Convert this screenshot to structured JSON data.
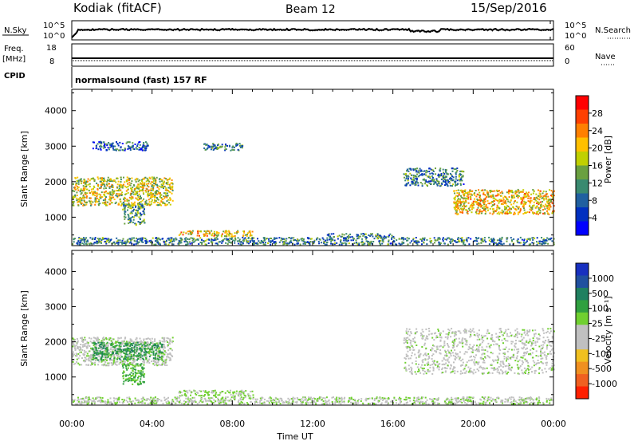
{
  "header": {
    "station": "Kodiak (fitACF)",
    "beam": "Beam 12",
    "date": "15/Sep/2016"
  },
  "top_panels": {
    "nsky_label": "N.Sky",
    "nsearch_label": "N.Search",
    "noise_ticks": [
      "10^5",
      "10^0"
    ],
    "freq_label_1": "Freq.",
    "freq_label_2": "[MHz]",
    "freq_ticks": [
      "18",
      "8"
    ],
    "nave_label": "Nave",
    "nave_ticks": [
      "60",
      "0"
    ],
    "cpid_label": "CPID",
    "cpid_text": "normalsound (fast) 157 RF"
  },
  "axes": {
    "ylabel": "Slant Range [km]",
    "yticks": [
      "4000",
      "3000",
      "2000",
      "1000"
    ],
    "xticks": [
      "00:00",
      "04:00",
      "08:00",
      "12:00",
      "16:00",
      "20:00",
      "00:00"
    ],
    "xlabel": "Time UT"
  },
  "power_scale": {
    "label": "Power [dB]",
    "ticks": [
      "28",
      "24",
      "20",
      "16",
      "12",
      "8",
      "4"
    ],
    "colors": [
      "#ff0000",
      "#ff4000",
      "#ff8000",
      "#ffc000",
      "#c0d000",
      "#6aa040",
      "#3a8a70",
      "#2060a0",
      "#0030c0",
      "#0000ff"
    ]
  },
  "velocity_scale": {
    "label": "Velocity [m s⁻¹]",
    "ticks": [
      "1000",
      "500",
      "100",
      "25",
      "-25",
      "-100",
      "-500",
      "-1000"
    ],
    "colors": [
      "#1830c0",
      "#2050a0",
      "#208060",
      "#30a040",
      "#70d030",
      "#c0c0c0",
      "#c0c0c0",
      "#f0c020",
      "#f09020",
      "#f06020",
      "#ff2000"
    ]
  },
  "chart_data": [
    {
      "type": "heatmap",
      "title": "Power [dB]",
      "xlabel": "Time UT",
      "ylabel": "Slant Range [km]",
      "xlim": [
        0,
        24
      ],
      "ylim": [
        200,
        4600
      ],
      "color_range": [
        0,
        32
      ],
      "regions": [
        {
          "t0": 0.0,
          "t1": 5.0,
          "r0": 1350,
          "r1": 2150,
          "value": 18
        },
        {
          "t0": 2.5,
          "t1": 3.6,
          "r0": 800,
          "r1": 1400,
          "value": 12
        },
        {
          "t0": 5.3,
          "t1": 9.0,
          "r0": 480,
          "r1": 640,
          "value": 20
        },
        {
          "t0": 12.7,
          "t1": 16.0,
          "r0": 450,
          "r1": 560,
          "value": 10
        },
        {
          "t0": 16.5,
          "t1": 19.5,
          "r0": 1900,
          "r1": 2400,
          "value": 10
        },
        {
          "t0": 19.0,
          "t1": 24.0,
          "r0": 1100,
          "r1": 1800,
          "value": 20
        },
        {
          "t0": 1.0,
          "t1": 3.8,
          "r0": 2900,
          "r1": 3150,
          "value": 8
        },
        {
          "t0": 6.5,
          "t1": 8.5,
          "r0": 2900,
          "r1": 3100,
          "value": 10
        },
        {
          "t0": 0.0,
          "t1": 24.0,
          "r0": 250,
          "r1": 450,
          "value": 10
        }
      ]
    },
    {
      "type": "heatmap",
      "title": "Velocity [m s-1]",
      "xlabel": "Time UT",
      "ylabel": "Slant Range [km]",
      "xlim": [
        0,
        24
      ],
      "ylim": [
        200,
        4600
      ],
      "color_range": [
        -1000,
        1000
      ],
      "regions": [
        {
          "t0": 0.0,
          "t1": 5.0,
          "r0": 1350,
          "r1": 2150,
          "value": 0
        },
        {
          "t0": 1.0,
          "t1": 4.5,
          "r0": 1500,
          "r1": 2000,
          "value": 400
        },
        {
          "t0": 2.5,
          "t1": 3.6,
          "r0": 800,
          "r1": 1400,
          "value": 300
        },
        {
          "t0": 5.3,
          "t1": 9.0,
          "r0": 480,
          "r1": 640,
          "value": 120
        },
        {
          "t0": 16.5,
          "t1": 24.0,
          "r0": 1100,
          "r1": 2400,
          "value": 0
        },
        {
          "t0": 0.0,
          "t1": 24.0,
          "r0": 250,
          "r1": 450,
          "value": 60
        }
      ]
    }
  ]
}
